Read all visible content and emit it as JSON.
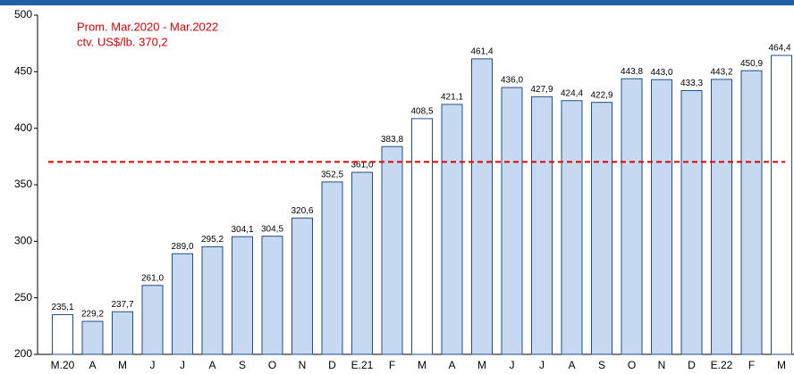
{
  "chart_data": {
    "type": "bar",
    "categories": [
      "M.20",
      "A",
      "M",
      "J",
      "J",
      "A",
      "S",
      "O",
      "N",
      "D",
      "E.21",
      "F",
      "M",
      "A",
      "M",
      "J",
      "J",
      "A",
      "S",
      "O",
      "N",
      "D",
      "E.22",
      "F",
      "M"
    ],
    "values": [
      235.1,
      229.2,
      237.7,
      261.0,
      289.0,
      295.2,
      304.1,
      304.5,
      320.6,
      352.5,
      361.0,
      383.8,
      408.5,
      421.1,
      461.4,
      436.0,
      427.9,
      424.4,
      422.9,
      443.8,
      443.0,
      433.3,
      443.2,
      450.9,
      464.4
    ],
    "value_labels": [
      "235,1",
      "229,2",
      "237,7",
      "261,0",
      "289,0",
      "295,2",
      "304,1",
      "304,5",
      "320,6",
      "352,5",
      "361,0",
      "383,8",
      "408,5",
      "421,1",
      "461,4",
      "436,0",
      "427,9",
      "424,4",
      "422,9",
      "443,8",
      "443,0",
      "433,3",
      "443,2",
      "450,9",
      "464,4"
    ],
    "colors": [
      "#ffffff",
      "#c6d9f1",
      "#c6d9f1",
      "#c6d9f1",
      "#c6d9f1",
      "#c6d9f1",
      "#c6d9f1",
      "#c6d9f1",
      "#c6d9f1",
      "#c6d9f1",
      "#c6d9f1",
      "#c6d9f1",
      "#ffffff",
      "#c6d9f1",
      "#c6d9f1",
      "#c6d9f1",
      "#c6d9f1",
      "#c6d9f1",
      "#c6d9f1",
      "#c6d9f1",
      "#c6d9f1",
      "#c6d9f1",
      "#c6d9f1",
      "#c6d9f1",
      "#ffffff"
    ],
    "reference_line": {
      "value": 370.2,
      "color": "#e00000",
      "label_lines": [
        "Prom. Mar.2020 - Mar.2022",
        "ctv. US$/lb. 370,2"
      ]
    },
    "ylim": [
      200,
      500
    ],
    "yticks": [
      200,
      250,
      300,
      350,
      400,
      450,
      500
    ]
  }
}
